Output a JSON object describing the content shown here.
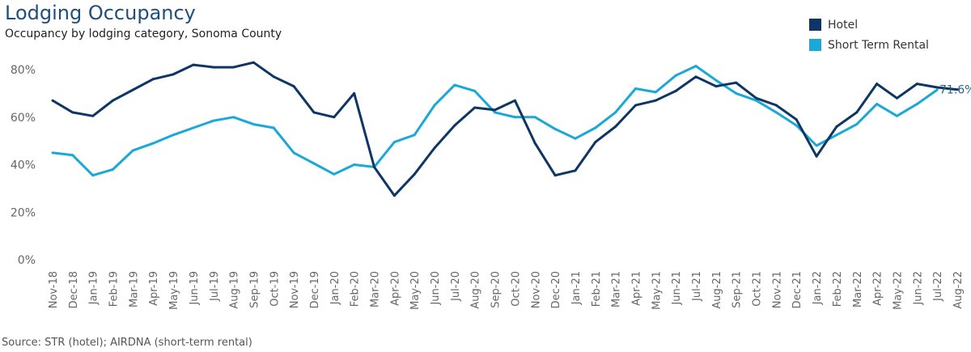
{
  "title": "Lodging Occupancy",
  "subtitle": "Occupancy by lodging category, Sonoma County",
  "source": "Source: STR (hotel); AIRDNA (short-term rental)",
  "chart_data": {
    "type": "line",
    "title": "Lodging Occupancy",
    "subtitle": "Occupancy by lodging category, Sonoma County",
    "xlabel": "",
    "ylabel": "",
    "ylim": [
      0,
      80
    ],
    "yticks": [
      "0%",
      "20%",
      "40%",
      "60%",
      "80%"
    ],
    "grid": false,
    "legend": "top-right",
    "categories": [
      "Nov-18",
      "Dec-18",
      "Jan-19",
      "Feb-19",
      "Mar-19",
      "Apr-19",
      "May-19",
      "Jun-19",
      "Jul-19",
      "Aug-19",
      "Sep-19",
      "Oct-19",
      "Nov-19",
      "Dec-19",
      "Jan-20",
      "Feb-20",
      "Mar-20",
      "Apr-20",
      "May-20",
      "Jun-20",
      "Jul-20",
      "Aug-20",
      "Sep-20",
      "Oct-20",
      "Nov-20",
      "Dec-20",
      "Jan-21",
      "Feb-21",
      "Mar-21",
      "Apr-21",
      "May-21",
      "Jun-21",
      "Jul-21",
      "Aug-21",
      "Sep-21",
      "Oct-21",
      "Nov-21",
      "Dec-21",
      "Jan-22",
      "Feb-22",
      "Mar-22",
      "Apr-22",
      "May-22",
      "Jun-22",
      "Jul-22",
      "Aug-22"
    ],
    "series": [
      {
        "name": "Hotel",
        "color": "#0d3565",
        "values": [
          67,
          62,
          60.5,
          67,
          71.5,
          76,
          78,
          82,
          81,
          81,
          83,
          77,
          73,
          62,
          60,
          70,
          39,
          27,
          36,
          47,
          56.5,
          64,
          63,
          67,
          49,
          35.5,
          37.5,
          49.5,
          56,
          65,
          67,
          71,
          77,
          73,
          74.5,
          68,
          65,
          59,
          43.5,
          56,
          62,
          74,
          68,
          74,
          72.5,
          71.6
        ]
      },
      {
        "name": "Short Term Rental",
        "color": "#1aa9d6",
        "values": [
          45,
          44,
          35.5,
          38,
          46,
          49,
          52.5,
          55.5,
          58.5,
          60,
          57,
          55.5,
          45,
          40.5,
          36,
          40,
          39,
          49.5,
          52.5,
          65,
          73.5,
          71,
          62,
          60,
          60,
          55,
          51,
          55.5,
          62,
          72,
          70.5,
          77.5,
          81.5,
          75.5,
          70,
          67,
          62,
          56.5,
          48,
          52.5,
          57,
          65.5,
          60.5,
          65.5,
          71.5,
          null
        ]
      }
    ],
    "annotations": [
      "71.6%"
    ]
  }
}
